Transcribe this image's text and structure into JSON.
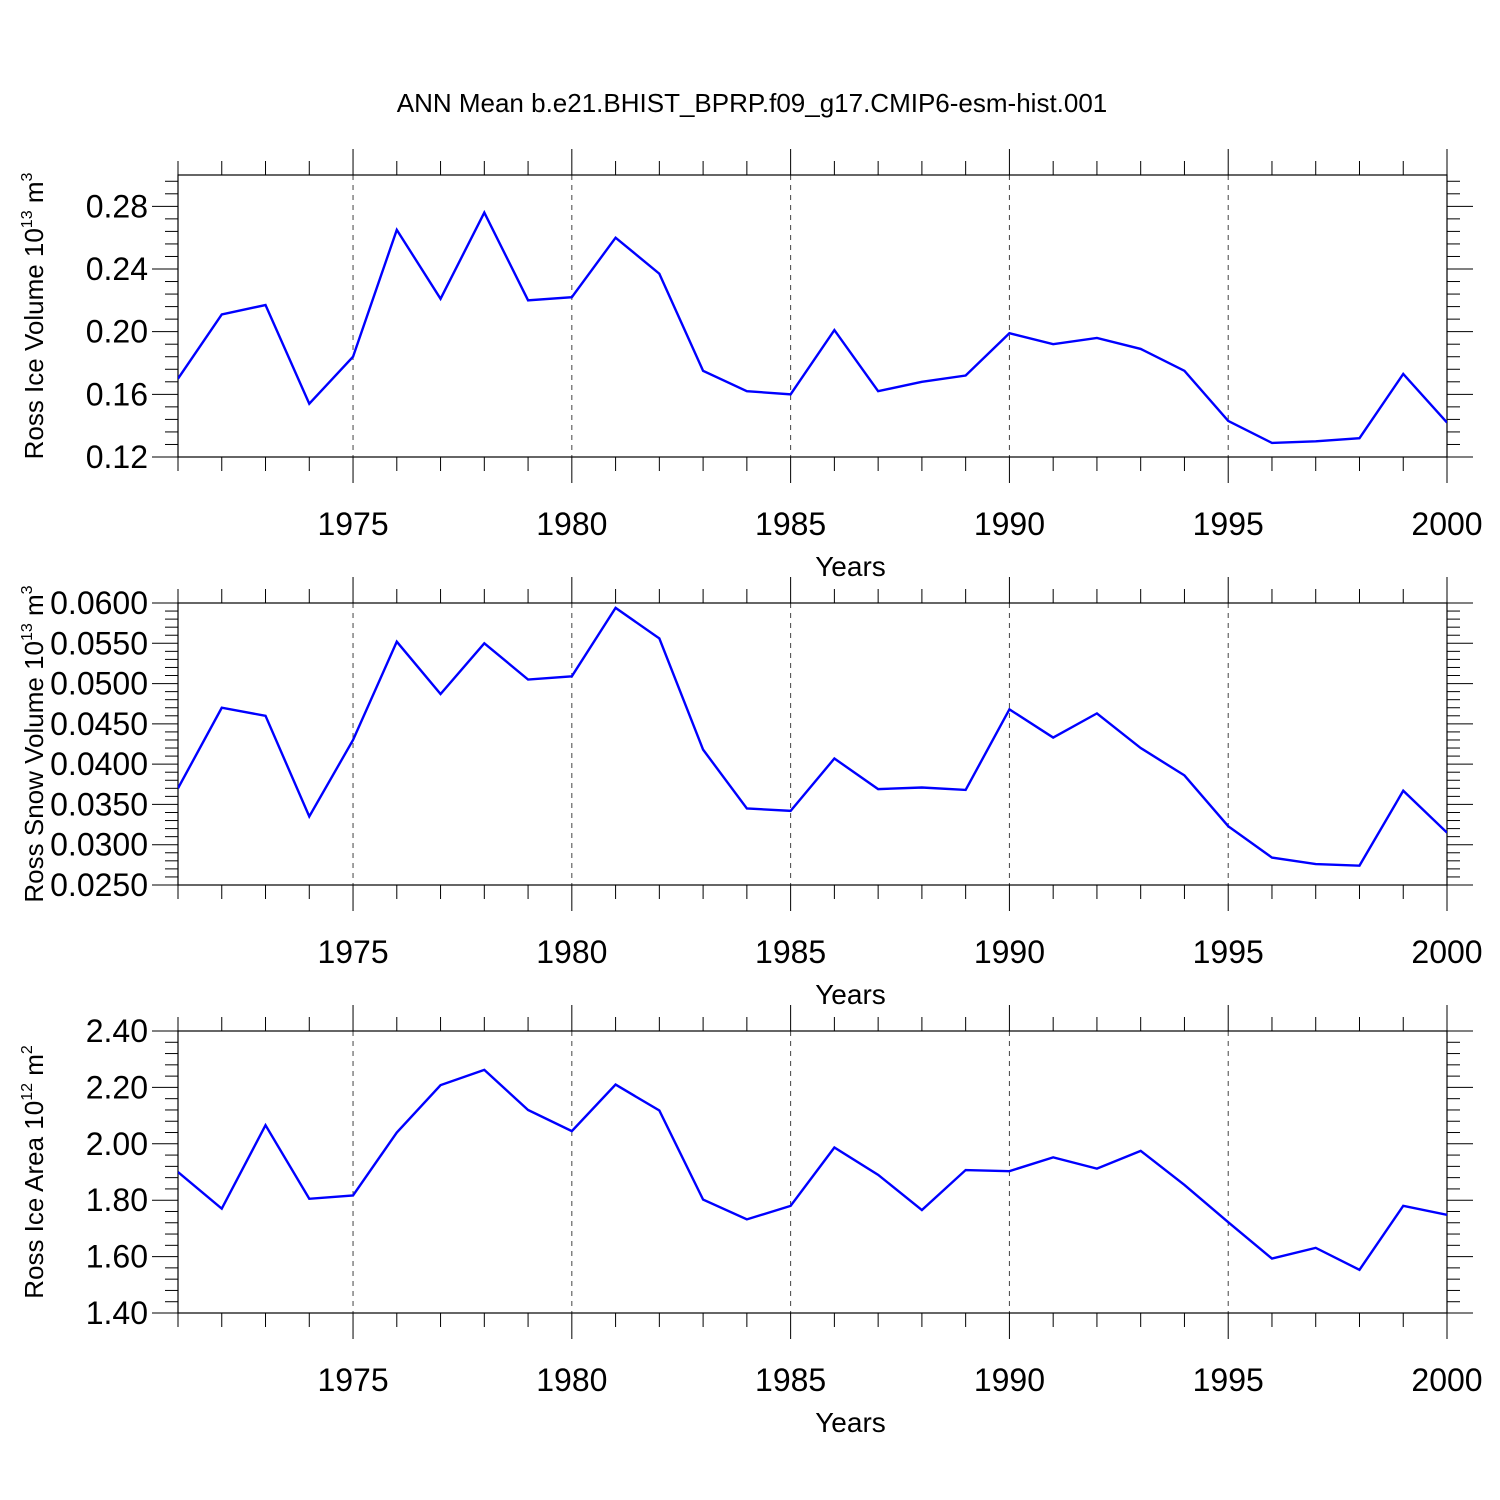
{
  "title": "ANN Mean b.e21.BHIST_BPRP.f09_g17.CMIP6-esm-hist.001",
  "line_color": "#0000ff",
  "chart_data": [
    {
      "type": "line",
      "xlabel": "Years",
      "ylabel": {
        "text": "Ross Ice Volume 10",
        "sup": "13",
        "unit": " m",
        "unit_sup": "3"
      },
      "x": [
        1971,
        1972,
        1973,
        1974,
        1975,
        1976,
        1977,
        1978,
        1979,
        1980,
        1981,
        1982,
        1983,
        1984,
        1985,
        1986,
        1987,
        1988,
        1989,
        1990,
        1991,
        1992,
        1993,
        1994,
        1995,
        1996,
        1997,
        1998,
        1999,
        2000
      ],
      "xlim": [
        1971,
        2000
      ],
      "xticks": [
        1975,
        1980,
        1985,
        1990,
        1995,
        2000
      ],
      "ylim": [
        0.12,
        0.3
      ],
      "yticks": [
        0.12,
        0.16,
        0.2,
        0.24,
        0.28
      ],
      "ytick_labels": [
        "0.12",
        "0.16",
        "0.20",
        "0.24",
        "0.28"
      ],
      "series": [
        {
          "values": [
            0.17,
            0.211,
            0.217,
            0.154,
            0.184,
            0.265,
            0.221,
            0.276,
            0.22,
            0.222,
            0.26,
            0.237,
            0.175,
            0.162,
            0.16,
            0.201,
            0.162,
            0.168,
            0.172,
            0.199,
            0.192,
            0.196,
            0.189,
            0.175,
            0.143,
            0.129,
            0.13,
            0.132,
            0.173,
            0.142
          ]
        }
      ]
    },
    {
      "type": "line",
      "xlabel": "Years",
      "ylabel": {
        "text": "Ross Snow Volume 10",
        "sup": "13",
        "unit": " m",
        "unit_sup": "3"
      },
      "x": [
        1971,
        1972,
        1973,
        1974,
        1975,
        1976,
        1977,
        1978,
        1979,
        1980,
        1981,
        1982,
        1983,
        1984,
        1985,
        1986,
        1987,
        1988,
        1989,
        1990,
        1991,
        1992,
        1993,
        1994,
        1995,
        1996,
        1997,
        1998,
        1999,
        2000
      ],
      "xlim": [
        1971,
        2000
      ],
      "xticks": [
        1975,
        1980,
        1985,
        1990,
        1995,
        2000
      ],
      "ylim": [
        0.025,
        0.06
      ],
      "yticks": [
        0.025,
        0.03,
        0.035,
        0.04,
        0.045,
        0.05,
        0.055,
        0.06
      ],
      "ytick_labels": [
        "0.0250",
        "0.0300",
        "0.0350",
        "0.0400",
        "0.0450",
        "0.0500",
        "0.0550",
        "0.0600"
      ],
      "series": [
        {
          "values": [
            0.037,
            0.047,
            0.046,
            0.0335,
            0.043,
            0.0552,
            0.0487,
            0.055,
            0.0505,
            0.0509,
            0.0594,
            0.0556,
            0.0418,
            0.0345,
            0.0342,
            0.0407,
            0.0369,
            0.0371,
            0.0368,
            0.0468,
            0.0433,
            0.0463,
            0.042,
            0.0386,
            0.0323,
            0.0284,
            0.0276,
            0.0274,
            0.0367,
            0.0315
          ]
        }
      ]
    },
    {
      "type": "line",
      "xlabel": "Years",
      "ylabel": {
        "text": "Ross Ice Area 10",
        "sup": "12",
        "unit": " m",
        "unit_sup": "2"
      },
      "x": [
        1971,
        1972,
        1973,
        1974,
        1975,
        1976,
        1977,
        1978,
        1979,
        1980,
        1981,
        1982,
        1983,
        1984,
        1985,
        1986,
        1987,
        1988,
        1989,
        1990,
        1991,
        1992,
        1993,
        1994,
        1995,
        1996,
        1997,
        1998,
        1999,
        2000
      ],
      "xlim": [
        1971,
        2000
      ],
      "xticks": [
        1975,
        1980,
        1985,
        1990,
        1995,
        2000
      ],
      "ylim": [
        1.4,
        2.4
      ],
      "yticks": [
        1.4,
        1.6,
        1.8,
        2.0,
        2.2,
        2.4
      ],
      "ytick_labels": [
        "1.40",
        "1.60",
        "1.80",
        "2.00",
        "2.20",
        "2.40"
      ],
      "series": [
        {
          "values": [
            1.9,
            1.77,
            2.066,
            1.805,
            1.817,
            2.04,
            2.208,
            2.262,
            2.12,
            2.045,
            2.21,
            2.118,
            1.802,
            1.732,
            1.78,
            1.987,
            1.89,
            1.765,
            1.907,
            1.903,
            1.952,
            1.912,
            1.975,
            1.854,
            1.722,
            1.593,
            1.631,
            1.553,
            1.78,
            1.748
          ]
        }
      ]
    }
  ]
}
